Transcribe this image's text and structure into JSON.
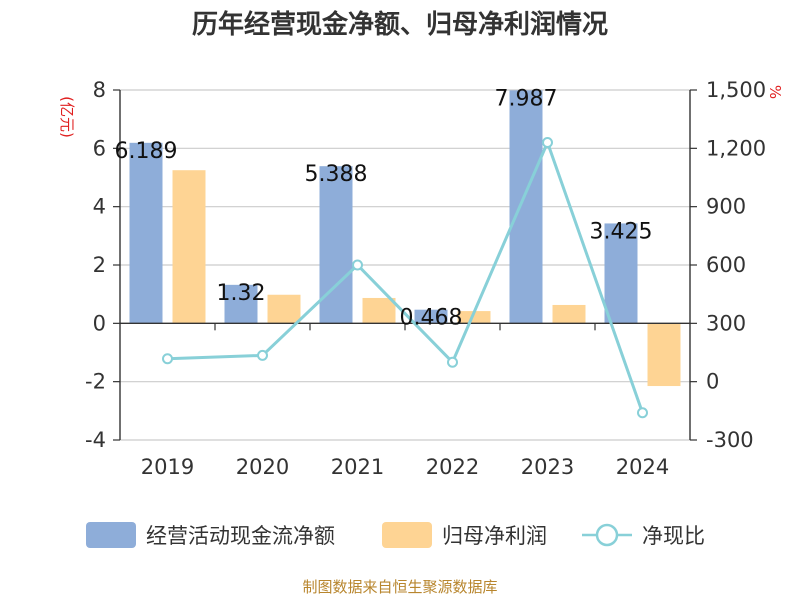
{
  "chart_data": {
    "type": "bar",
    "title": "历年经营现金净额、归母净利润情况",
    "categories": [
      "2019",
      "2020",
      "2021",
      "2022",
      "2023",
      "2024"
    ],
    "y_left": {
      "unit": "(亿元)",
      "min": -4,
      "max": 8,
      "ticks": [
        "8",
        "6",
        "4",
        "2",
        "0",
        "-2",
        "-4"
      ],
      "tick_values": [
        8,
        6,
        4,
        2,
        0,
        -2,
        -4
      ]
    },
    "y_right": {
      "unit": "%",
      "min": -300,
      "max": 1500,
      "ticks": [
        "1,500",
        "1,200",
        "900",
        "600",
        "300",
        "0",
        "-300"
      ],
      "tick_values": [
        1500,
        1200,
        900,
        600,
        300,
        0,
        -300
      ]
    },
    "series": [
      {
        "name": "经营活动现金流净额",
        "type": "bar",
        "axis": "left",
        "color": "#8eadd9",
        "values": [
          6.189,
          1.32,
          5.388,
          0.468,
          7.987,
          3.425
        ],
        "labels": [
          "6.189",
          "1.32",
          "5.388",
          "0.468",
          "7.987",
          "3.425"
        ]
      },
      {
        "name": "归母净利润",
        "type": "bar",
        "axis": "left",
        "color": "#fed494",
        "values": [
          5.25,
          0.98,
          0.87,
          0.42,
          0.63,
          -2.15
        ]
      },
      {
        "name": "净现比",
        "type": "line",
        "axis": "right",
        "color": "#88d0d8",
        "values": [
          118,
          135,
          600,
          100,
          1230,
          -160
        ]
      }
    ],
    "legend_position": "bottom",
    "grid": true
  },
  "source_text": "制图数据来自恒生聚源数据库"
}
